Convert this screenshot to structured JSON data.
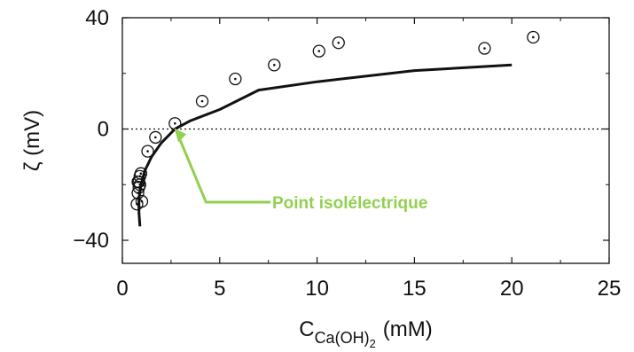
{
  "chart_data": {
    "type": "scatter",
    "xlim": [
      0,
      25
    ],
    "ylim": [
      -50,
      40
    ],
    "x_ticks": [
      0,
      5,
      10,
      15,
      20,
      25
    ],
    "y_ticks": [
      -40,
      0,
      40
    ],
    "x_tick_labels": [
      "0",
      "5",
      "10",
      "15",
      "20",
      "25"
    ],
    "y_tick_labels": [
      "−40",
      "0",
      "40"
    ],
    "xlabel_main": "C",
    "xlabel_sub": "Ca(OH)",
    "xlabel_sub2": "2",
    "xlabel_unit": "(mM)",
    "ylabel": "ζ (mV)",
    "grid": false,
    "zero_line": {
      "y": 0,
      "style": "dotted"
    },
    "series": [
      {
        "marker": "circle-dot",
        "x": [
          0.75,
          0.8,
          0.85,
          0.9,
          0.8,
          0.85,
          0.9,
          0.95,
          1.0,
          1.3,
          1.7,
          2.7,
          4.1,
          5.8,
          7.8,
          10.1,
          11.1,
          18.6,
          21.1
        ],
        "y": [
          -27,
          -23,
          -21,
          -20,
          -19,
          -19,
          -17,
          -16,
          -26,
          -8,
          -3,
          2,
          10,
          18,
          23,
          28,
          31,
          29,
          33
        ]
      },
      {
        "marker": "line",
        "x": [
          0.9,
          0.85,
          0.85,
          0.95,
          1.15,
          1.5,
          2.0,
          2.7,
          3.5,
          5.0,
          7.0,
          10.0,
          15.0,
          20.0
        ],
        "y": [
          -35,
          -30,
          -25,
          -20,
          -15,
          -10,
          -5,
          0,
          3,
          7,
          14,
          17,
          21,
          23
        ]
      }
    ],
    "annotation": {
      "text": "Point isolélectrique",
      "color": "#92d050",
      "target": {
        "x": 2.7,
        "y": 0
      }
    }
  }
}
